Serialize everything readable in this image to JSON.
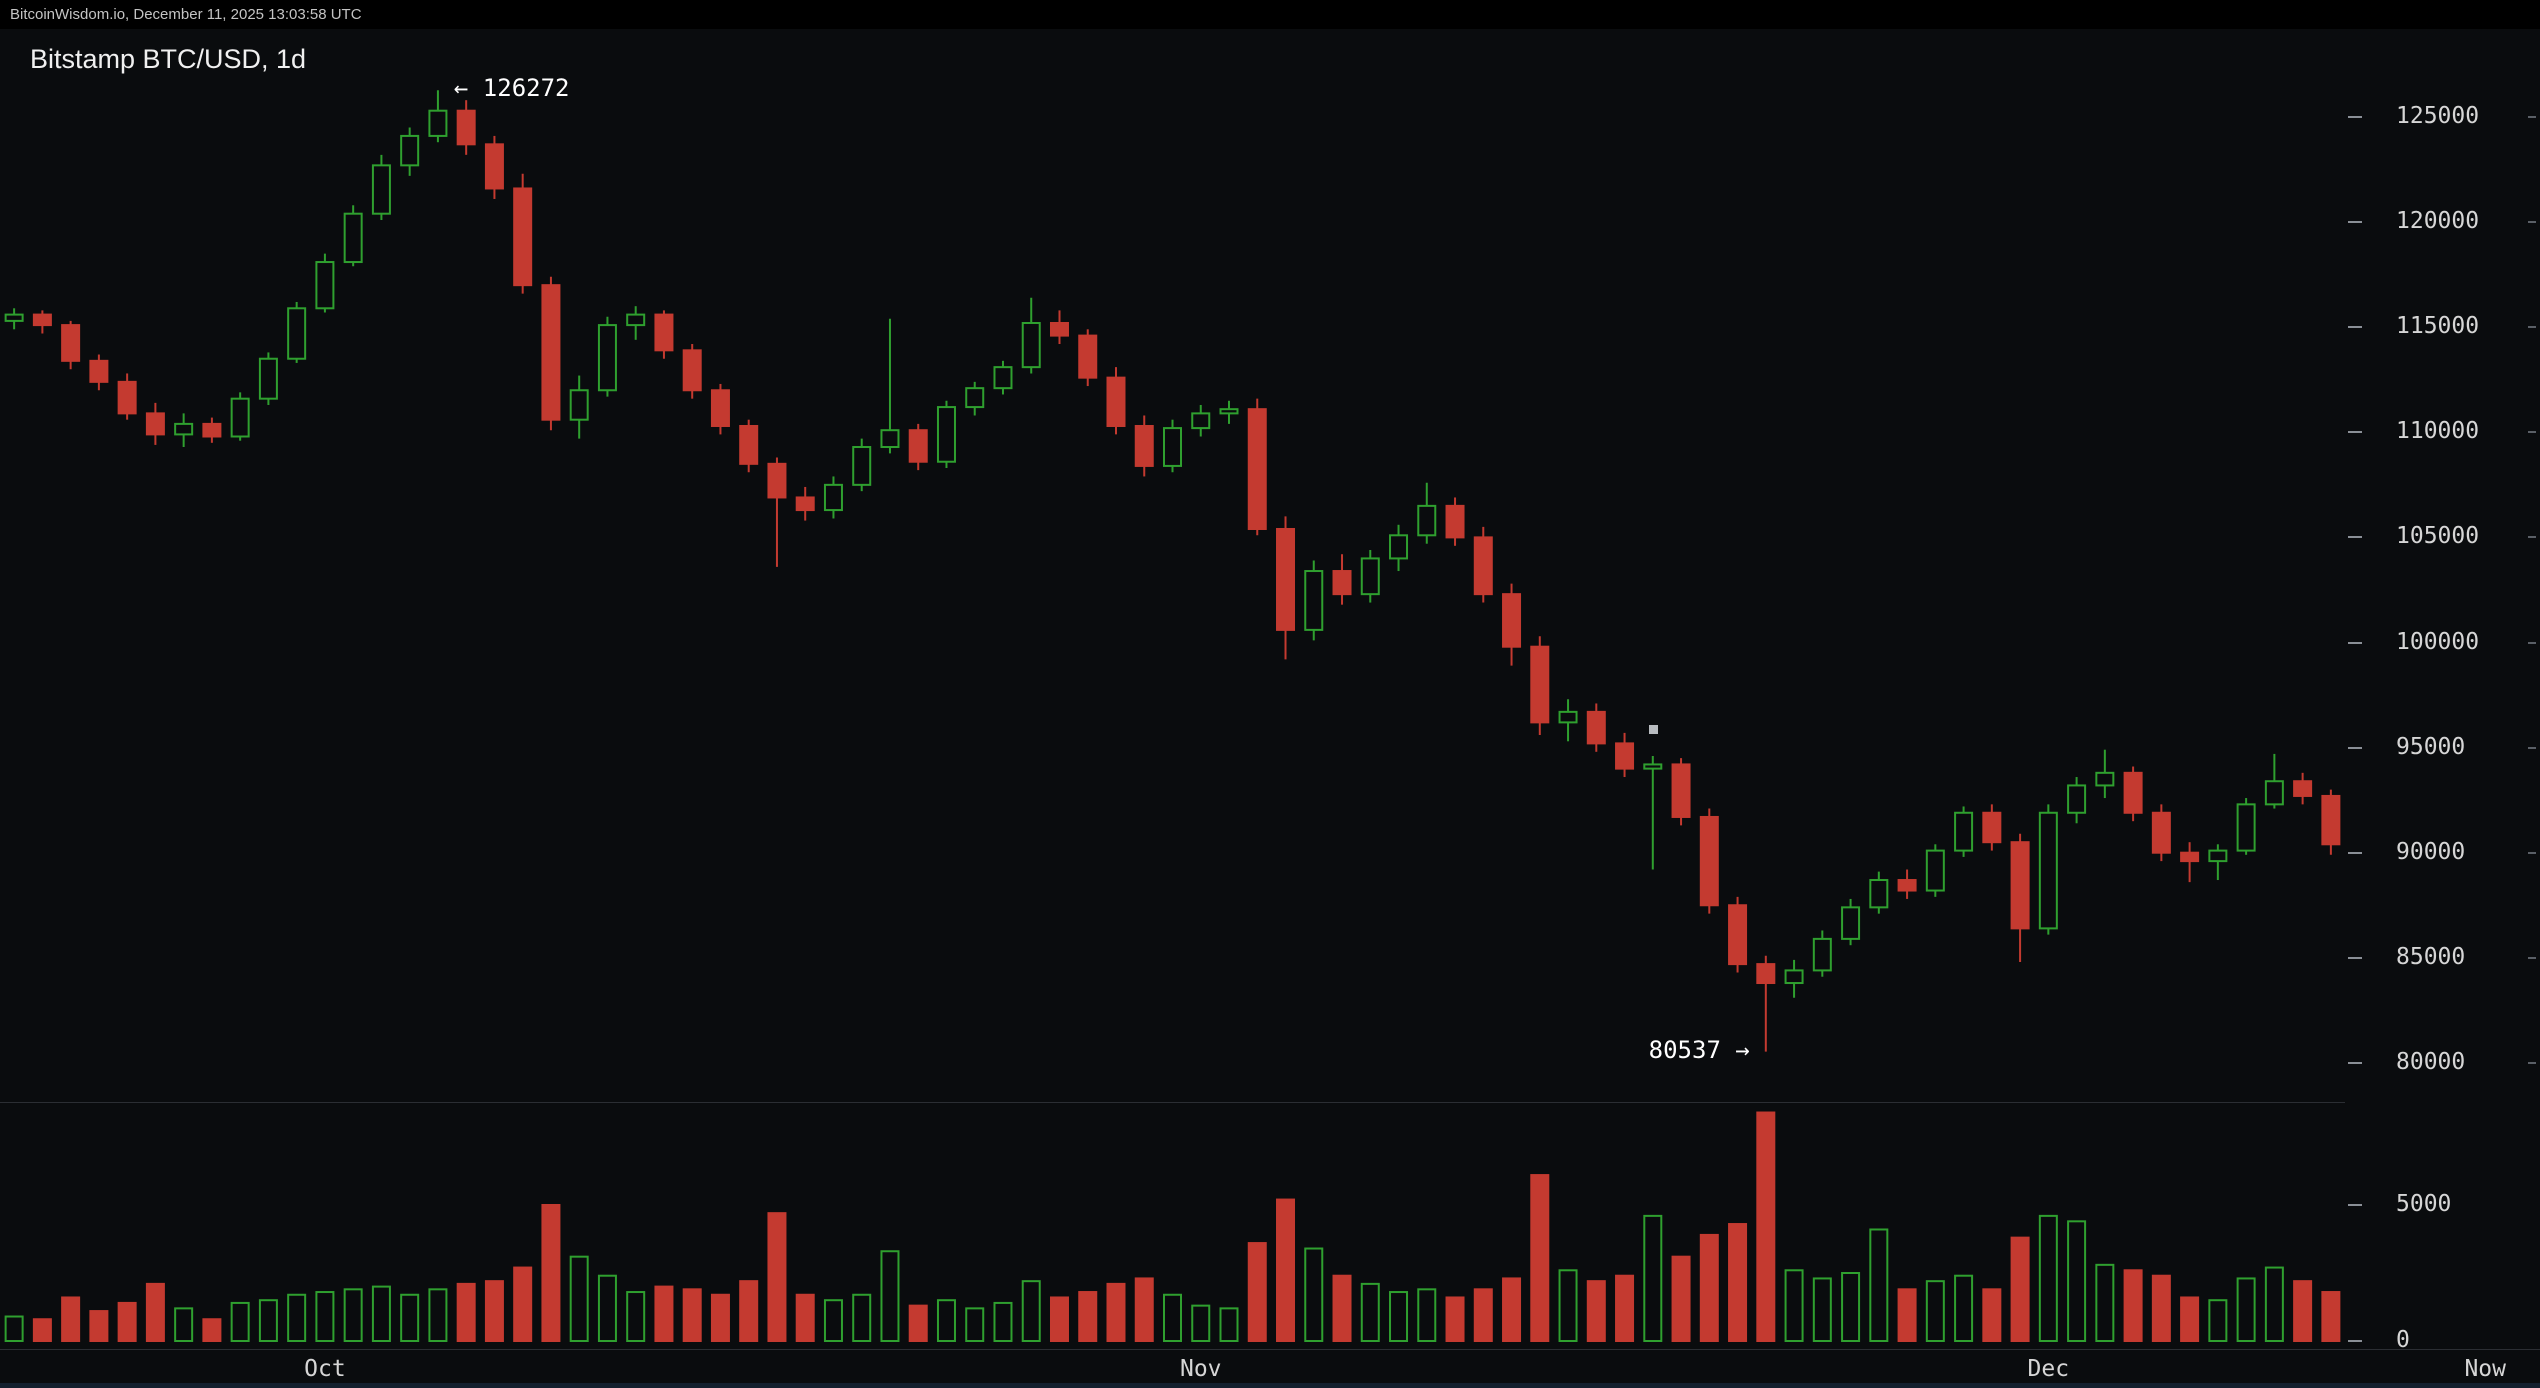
{
  "header": {
    "status_line": "BitcoinWisdom.io, December 11, 2025 13:03:58 UTC"
  },
  "chart": {
    "title": "Bitstamp BTC/USD, 1d",
    "high_annotation": "← 126272",
    "low_annotation": "80537 →",
    "marker": {
      "date": "Nov 17",
      "price": 95900
    },
    "colors": {
      "up": "#2fa02f",
      "down": "#c43a30",
      "bg": "#0a0c0e",
      "axis_text": "#d6d6d6",
      "divider": "#2b2e33"
    },
    "axes": {
      "price_ticks": [
        125000,
        120000,
        115000,
        110000,
        105000,
        100000,
        95000,
        90000,
        85000,
        80000
      ],
      "volume_ticks": [
        5000,
        0
      ],
      "x_labels": [
        "Oct",
        "Nov",
        "Dec",
        "Now"
      ]
    }
  },
  "chart_data": {
    "type": "candlestick+volume",
    "title": "Bitstamp BTC/USD, 1d",
    "exchange": "Bitstamp",
    "pair": "BTC/USD",
    "interval": "1d",
    "grid": false,
    "legend_position": "none",
    "price_axis": {
      "tick_step": 5000,
      "ticks": [
        125000,
        120000,
        115000,
        110000,
        105000,
        100000,
        95000,
        90000,
        85000,
        80000
      ]
    },
    "volume_axis": {
      "ticks": [
        5000,
        0
      ]
    },
    "session_high": 126272,
    "session_low": 80537,
    "last_close": 90400,
    "candles": {
      "columns": [
        "date",
        "open",
        "high",
        "low",
        "close",
        "volume"
      ],
      "rows": [
        [
          "Sep 20",
          115300,
          115900,
          114900,
          115600,
          900
        ],
        [
          "Sep 21",
          115600,
          115800,
          114700,
          115100,
          800
        ],
        [
          "Sep 22",
          115100,
          115300,
          113000,
          113400,
          1600
        ],
        [
          "Sep 23",
          113400,
          113700,
          112000,
          112400,
          1100
        ],
        [
          "Sep 24",
          112400,
          112800,
          110600,
          110900,
          1400
        ],
        [
          "Sep 25",
          110900,
          111400,
          109400,
          109900,
          2100
        ],
        [
          "Sep 26",
          109900,
          110900,
          109300,
          110400,
          1200
        ],
        [
          "Sep 27",
          110400,
          110700,
          109500,
          109800,
          800
        ],
        [
          "Sep 28",
          109800,
          111900,
          109600,
          111600,
          1400
        ],
        [
          "Sep 29",
          111600,
          113800,
          111300,
          113500,
          1500
        ],
        [
          "Sep 30",
          113500,
          116200,
          113300,
          115900,
          1700
        ],
        [
          "Oct 1",
          115900,
          118500,
          115700,
          118100,
          1800
        ],
        [
          "Oct 2",
          118100,
          120800,
          117900,
          120400,
          1900
        ],
        [
          "Oct 3",
          120400,
          123200,
          120100,
          122700,
          2000
        ],
        [
          "Oct 4",
          122700,
          124500,
          122200,
          124100,
          1700
        ],
        [
          "Oct 5",
          124100,
          126272,
          123800,
          125300,
          1900
        ],
        [
          "Oct 6",
          125300,
          125800,
          123200,
          123700,
          2100
        ],
        [
          "Oct 7",
          123700,
          124100,
          121100,
          121600,
          2200
        ],
        [
          "Oct 8",
          121600,
          122300,
          116600,
          117000,
          2700
        ],
        [
          "Oct 9",
          117000,
          117400,
          110100,
          110600,
          5000
        ],
        [
          "Oct 10",
          110600,
          112700,
          109700,
          112000,
          3100
        ],
        [
          "Oct 11",
          112000,
          115500,
          111700,
          115100,
          2400
        ],
        [
          "Oct 12",
          115100,
          116000,
          114400,
          115600,
          1800
        ],
        [
          "Oct 13",
          115600,
          115800,
          113500,
          113900,
          2000
        ],
        [
          "Oct 14",
          113900,
          114200,
          111600,
          112000,
          1900
        ],
        [
          "Oct 15",
          112000,
          112300,
          109900,
          110300,
          1700
        ],
        [
          "Oct 16",
          110300,
          110600,
          108100,
          108500,
          2200
        ],
        [
          "Oct 17",
          108500,
          108800,
          103600,
          106900,
          4700
        ],
        [
          "Oct 18",
          106900,
          107400,
          105800,
          106300,
          1700
        ],
        [
          "Oct 19",
          106300,
          107900,
          105900,
          107500,
          1500
        ],
        [
          "Oct 20",
          107500,
          109700,
          107200,
          109300,
          1700
        ],
        [
          "Oct 21",
          109300,
          115400,
          109000,
          110100,
          3300
        ],
        [
          "Oct 22",
          110100,
          110400,
          108200,
          108600,
          1300
        ],
        [
          "Oct 23",
          108600,
          111500,
          108300,
          111200,
          1500
        ],
        [
          "Oct 24",
          111200,
          112400,
          110800,
          112100,
          1200
        ],
        [
          "Oct 25",
          112100,
          113400,
          111800,
          113100,
          1400
        ],
        [
          "Oct 26",
          113100,
          116400,
          112800,
          115200,
          2200
        ],
        [
          "Oct 27",
          115200,
          115800,
          114200,
          114600,
          1600
        ],
        [
          "Oct 28",
          114600,
          114900,
          112200,
          112600,
          1800
        ],
        [
          "Oct 29",
          112600,
          113100,
          109900,
          110300,
          2100
        ],
        [
          "Oct 30",
          110300,
          110800,
          107900,
          108400,
          2300
        ],
        [
          "Oct 31",
          108400,
          110600,
          108100,
          110200,
          1700
        ],
        [
          "Nov 1",
          110200,
          111300,
          109800,
          110900,
          1300
        ],
        [
          "Nov 2",
          110900,
          111500,
          110400,
          111100,
          1200
        ],
        [
          "Nov 3",
          111100,
          111600,
          105100,
          105400,
          3600
        ],
        [
          "Nov 4",
          105400,
          106000,
          99200,
          100600,
          5200
        ],
        [
          "Nov 5",
          100600,
          103900,
          100100,
          103400,
          3400
        ],
        [
          "Nov 6",
          103400,
          104200,
          101800,
          102300,
          2400
        ],
        [
          "Nov 7",
          102300,
          104400,
          101900,
          104000,
          2100
        ],
        [
          "Nov 8",
          104000,
          105600,
          103400,
          105100,
          1800
        ],
        [
          "Nov 9",
          105100,
          107600,
          104700,
          106500,
          1900
        ],
        [
          "Nov 10",
          106500,
          106900,
          104600,
          105000,
          1600
        ],
        [
          "Nov 11",
          105000,
          105500,
          101900,
          102300,
          1900
        ],
        [
          "Nov 12",
          102300,
          102800,
          98900,
          99800,
          2300
        ],
        [
          "Nov 13",
          99800,
          100300,
          95600,
          96200,
          6100
        ],
        [
          "Nov 14",
          96200,
          97300,
          95300,
          96700,
          2600
        ],
        [
          "Nov 15",
          96700,
          97100,
          94800,
          95200,
          2200
        ],
        [
          "Nov 16",
          95200,
          95700,
          93600,
          94000,
          2400
        ],
        [
          "Nov 17",
          94000,
          94600,
          89200,
          94200,
          4600
        ],
        [
          "Nov 18",
          94200,
          94500,
          91300,
          91700,
          3100
        ],
        [
          "Nov 19",
          91700,
          92100,
          87100,
          87500,
          3900
        ],
        [
          "Nov 20",
          87500,
          87900,
          84300,
          84700,
          4300
        ],
        [
          "Nov 21",
          84700,
          85100,
          80537,
          83800,
          8400
        ],
        [
          "Nov 22",
          83800,
          84900,
          83100,
          84400,
          2600
        ],
        [
          "Nov 23",
          84400,
          86300,
          84100,
          85900,
          2300
        ],
        [
          "Nov 24",
          85900,
          87800,
          85600,
          87400,
          2500
        ],
        [
          "Nov 25",
          87400,
          89100,
          87100,
          88700,
          4100
        ],
        [
          "Nov 26",
          88700,
          89200,
          87800,
          88200,
          1900
        ],
        [
          "Nov 27",
          88200,
          90400,
          87900,
          90100,
          2200
        ],
        [
          "Nov 28",
          90100,
          92200,
          89800,
          91900,
          2400
        ],
        [
          "Nov 29",
          91900,
          92300,
          90100,
          90500,
          1900
        ],
        [
          "Nov 30",
          90500,
          90900,
          84800,
          86400,
          3800
        ],
        [
          "Dec 1",
          86400,
          92300,
          86100,
          91900,
          4600
        ],
        [
          "Dec 2",
          91900,
          93600,
          91400,
          93200,
          4400
        ],
        [
          "Dec 3",
          93200,
          94900,
          92600,
          93800,
          2800
        ],
        [
          "Dec 4",
          93800,
          94100,
          91500,
          91900,
          2600
        ],
        [
          "Dec 5",
          91900,
          92300,
          89600,
          90000,
          2400
        ],
        [
          "Dec 6",
          90000,
          90500,
          88600,
          89600,
          1600
        ],
        [
          "Dec 7",
          89600,
          90400,
          88700,
          90100,
          1500
        ],
        [
          "Dec 8",
          90100,
          92600,
          89900,
          92300,
          2300
        ],
        [
          "Dec 9",
          92300,
          94700,
          92100,
          93400,
          2700
        ],
        [
          "Dec 10",
          93400,
          93800,
          92300,
          92700,
          2200
        ],
        [
          "Dec 11",
          92700,
          93000,
          89900,
          90400,
          1800
        ]
      ]
    }
  }
}
